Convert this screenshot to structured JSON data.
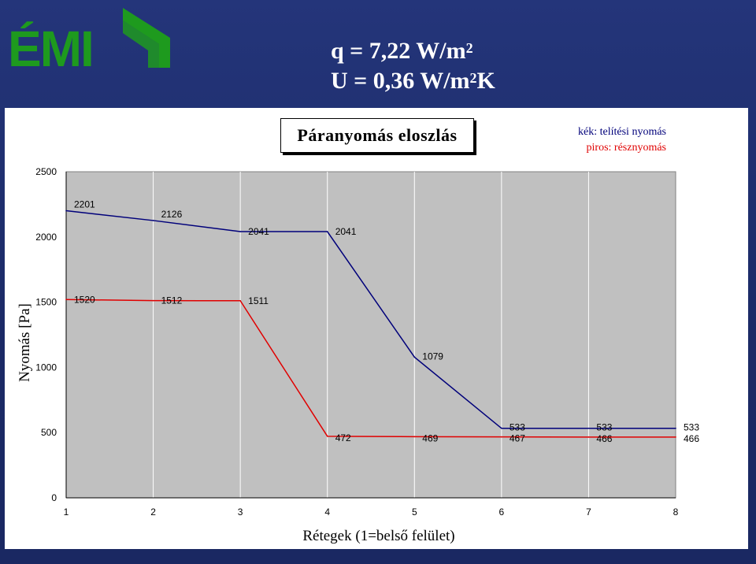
{
  "header": {
    "line1_prefix": "q = 7,22 W/m",
    "line1_sup": "2",
    "line2_prefix": "U = 0,36 W/m",
    "line2_sup": "2",
    "line2_suffix": "K"
  },
  "logo": {
    "text": "ÉMI",
    "color": "#1e9a1e"
  },
  "legend": {
    "blue_text": "kék: telítési nyomás",
    "red_text": "piros: résznyomás",
    "blue_color": "#00007a",
    "red_color": "#e00000"
  },
  "chart_data": {
    "type": "line",
    "title": "Páranyomás eloszlás",
    "xlabel": "Rétegek (1=belső felület)",
    "ylabel": "Nyomás [Pa]",
    "x": [
      1,
      2,
      3,
      4,
      5,
      6,
      7,
      8
    ],
    "xlim": [
      1,
      8
    ],
    "ylim": [
      0,
      2500
    ],
    "yticks": [
      0,
      500,
      1000,
      1500,
      2000,
      2500
    ],
    "grid": "vertical",
    "plot_background": "#c0c0c0",
    "series": [
      {
        "key": "blue",
        "color": "#00007a",
        "values": [
          2201,
          2126,
          2041,
          2041,
          1079,
          533,
          533,
          533
        ],
        "labels": [
          "2201",
          "2126",
          "2041",
          "2041",
          "1079",
          "533",
          "533",
          "533"
        ]
      },
      {
        "key": "red",
        "color": "#e00000",
        "values": [
          1520,
          1512,
          1511,
          472,
          469,
          467,
          466,
          466
        ],
        "labels": [
          "1520",
          "1512",
          "1511",
          "472",
          "469",
          "467",
          "466",
          "466"
        ]
      }
    ]
  }
}
